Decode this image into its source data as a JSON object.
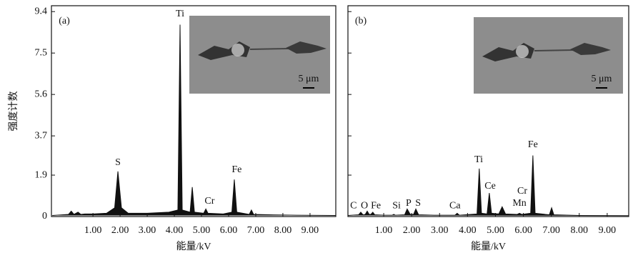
{
  "chart_data": [
    {
      "type": "line",
      "panel_label": "(a)",
      "ylabel": "强度计数",
      "xlabel": "能量/kV",
      "show_ytick_labels": true,
      "inset_scale": "5 μm",
      "color": "#111111",
      "xlim": [
        -0.53,
        9.95
      ],
      "ylim": [
        0,
        9.67
      ],
      "xticks": [
        {
          "value": 1,
          "label": "1.00"
        },
        {
          "value": 2,
          "label": "2.00"
        },
        {
          "value": 3,
          "label": "3.00"
        },
        {
          "value": 4,
          "label": "4.00"
        },
        {
          "value": 5,
          "label": "5.00"
        },
        {
          "value": 6,
          "label": "6.00"
        },
        {
          "value": 7,
          "label": "7.00"
        },
        {
          "value": 8,
          "label": "8.00"
        },
        {
          "value": 9,
          "label": "9.00"
        }
      ],
      "yticks": [
        0,
        1.9,
        3.7,
        5.6,
        7.5,
        9.4
      ],
      "x": [
        -0.5,
        0.1,
        0.2,
        0.3,
        0.45,
        0.55,
        0.7,
        1.0,
        1.5,
        1.8,
        1.92,
        2.05,
        2.3,
        3.0,
        3.8,
        4.13,
        4.21,
        4.29,
        4.58,
        4.66,
        4.74,
        5.08,
        5.16,
        5.24,
        5.8,
        6.12,
        6.21,
        6.3,
        6.76,
        6.84,
        6.92,
        7.5,
        8.5,
        9.95
      ],
      "values": [
        0.05,
        0.1,
        0.25,
        0.1,
        0.2,
        0.1,
        0.12,
        0.12,
        0.15,
        0.4,
        2.07,
        0.4,
        0.15,
        0.15,
        0.2,
        0.3,
        8.8,
        0.3,
        0.2,
        1.35,
        0.2,
        0.15,
        0.35,
        0.15,
        0.12,
        0.2,
        1.7,
        0.2,
        0.1,
        0.3,
        0.1,
        0.08,
        0.06,
        0.05
      ],
      "annotations": [
        {
          "text": "S",
          "x": 1.92,
          "y": 2.46
        },
        {
          "text": "Ti",
          "x": 4.21,
          "y": 9.28
        },
        {
          "text": "Cr",
          "x": 5.3,
          "y": 0.69
        },
        {
          "text": "Fe",
          "x": 6.3,
          "y": 2.13
        }
      ]
    },
    {
      "type": "line",
      "panel_label": "(b)",
      "xlabel": "能量/kV",
      "show_ytick_labels": false,
      "inset_scale": "5 μm",
      "color": "#111111",
      "xlim": [
        -0.28,
        9.77
      ],
      "ylim": [
        0,
        9.67
      ],
      "xticks": [
        {
          "value": 1,
          "label": "1.00"
        },
        {
          "value": 2,
          "label": "2.00"
        },
        {
          "value": 3,
          "label": "3.00"
        },
        {
          "value": 4,
          "label": "4.00"
        },
        {
          "value": 5,
          "label": "5.00"
        },
        {
          "value": 6,
          "label": "6.00"
        },
        {
          "value": 7,
          "label": "7.00"
        },
        {
          "value": 8,
          "label": "8.00"
        },
        {
          "value": 9,
          "label": "9.00"
        }
      ],
      "yticks": [
        0,
        1.9,
        3.7,
        5.6,
        7.5,
        9.4
      ],
      "x": [
        -0.28,
        0.1,
        0.18,
        0.26,
        0.34,
        0.41,
        0.48,
        0.54,
        0.61,
        0.68,
        1.0,
        1.3,
        1.36,
        1.42,
        1.75,
        1.84,
        1.95,
        2.07,
        2.15,
        2.25,
        2.8,
        3.55,
        3.63,
        3.71,
        4.34,
        4.42,
        4.5,
        4.7,
        4.78,
        4.86,
        5.12,
        5.24,
        5.36,
        5.78,
        5.86,
        5.94,
        6.26,
        6.34,
        6.42,
        6.93,
        7.01,
        7.09,
        8.0,
        9.77
      ],
      "values": [
        0.05,
        0.08,
        0.2,
        0.08,
        0.1,
        0.25,
        0.1,
        0.1,
        0.2,
        0.08,
        0.06,
        0.06,
        0.1,
        0.06,
        0.08,
        0.35,
        0.1,
        0.1,
        0.35,
        0.08,
        0.06,
        0.06,
        0.15,
        0.06,
        0.12,
        2.2,
        0.15,
        0.12,
        1.08,
        0.15,
        0.12,
        0.45,
        0.12,
        0.1,
        0.15,
        0.1,
        0.15,
        2.8,
        0.15,
        0.08,
        0.4,
        0.08,
        0.05,
        0.04
      ],
      "annotations": [
        {
          "text": "C",
          "x": -0.08,
          "y": 0.49
        },
        {
          "text": "O",
          "x": 0.31,
          "y": 0.49
        },
        {
          "text": "Fe",
          "x": 0.72,
          "y": 0.49
        },
        {
          "text": "Si",
          "x": 1.46,
          "y": 0.49
        },
        {
          "text": "P",
          "x": 1.89,
          "y": 0.59
        },
        {
          "text": "S",
          "x": 2.23,
          "y": 0.59
        },
        {
          "text": "Ca",
          "x": 3.55,
          "y": 0.49
        },
        {
          "text": "Ti",
          "x": 4.4,
          "y": 2.59
        },
        {
          "text": "Ce",
          "x": 4.81,
          "y": 1.38
        },
        {
          "text": "Mn",
          "x": 5.86,
          "y": 0.59
        },
        {
          "text": "Cr",
          "x": 5.96,
          "y": 1.15
        },
        {
          "text": "Fe",
          "x": 6.34,
          "y": 3.28
        }
      ]
    }
  ]
}
